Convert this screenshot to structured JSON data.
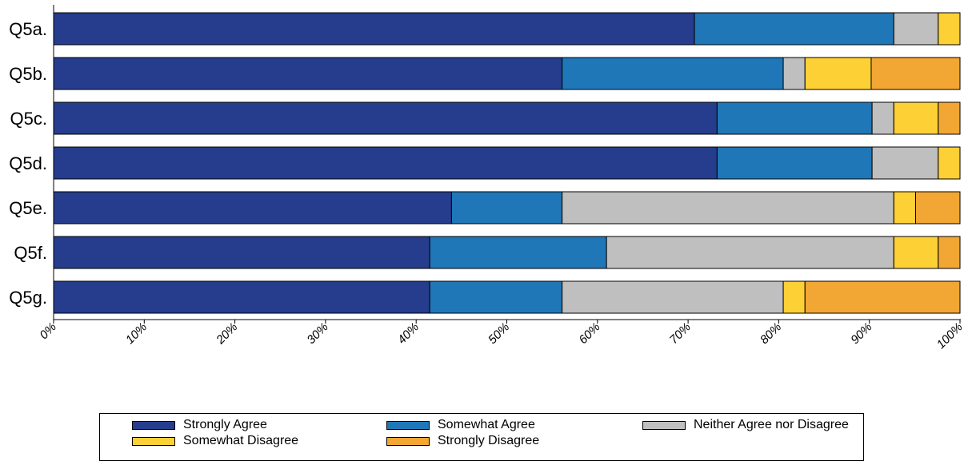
{
  "chart_data": {
    "type": "bar",
    "orientation": "horizontal",
    "stacked": true,
    "categories": [
      "Q5a.",
      "Q5b.",
      "Q5c.",
      "Q5d.",
      "Q5e.",
      "Q5f.",
      "Q5g."
    ],
    "series": [
      {
        "name": "Strongly Agree",
        "color": "#253d8c",
        "values": [
          70.7,
          56.1,
          73.2,
          73.2,
          43.9,
          41.5,
          41.5
        ]
      },
      {
        "name": "Somewhat Agree",
        "color": "#1f77b8",
        "values": [
          22.0,
          24.4,
          17.1,
          17.1,
          12.2,
          19.5,
          14.6
        ]
      },
      {
        "name": "Neither Agree nor Disagree",
        "color": "#bfbfbf",
        "values": [
          4.9,
          2.4,
          2.4,
          7.3,
          36.6,
          31.7,
          24.4
        ]
      },
      {
        "name": "Somewhat Disagree",
        "color": "#fdd036",
        "values": [
          2.4,
          7.3,
          4.9,
          2.4,
          2.4,
          4.9,
          2.4
        ]
      },
      {
        "name": "Strongly Disagree",
        "color": "#f2a633",
        "values": [
          0.0,
          9.8,
          2.4,
          0.0,
          4.9,
          2.4,
          17.1
        ]
      }
    ],
    "xticks": [
      "0%",
      "10%",
      "20%",
      "30%",
      "40%",
      "50%",
      "60%",
      "70%",
      "80%",
      "90%",
      "100%"
    ],
    "xlim": [
      0,
      100
    ],
    "grid": false,
    "legend_position": "bottom",
    "legend": [
      {
        "label": "Strongly Agree",
        "color": "#253d8c"
      },
      {
        "label": "Somewhat Agree",
        "color": "#1f77b8"
      },
      {
        "label": "Neither Agree nor Disagree",
        "color": "#bfbfbf"
      },
      {
        "label": "Somewhat Disagree",
        "color": "#fdd036"
      },
      {
        "label": "Strongly Disagree",
        "color": "#f2a633"
      }
    ]
  }
}
